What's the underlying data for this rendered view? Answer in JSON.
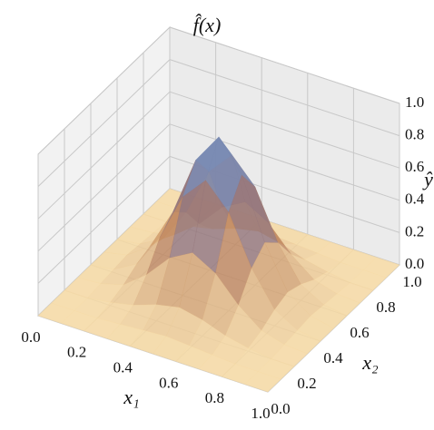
{
  "chart_data": {
    "type": "surface3d",
    "title": "f̂(x)",
    "x_label": "x₁",
    "y_label": "x₂",
    "z_label": "ŷ",
    "x": [
      0,
      0.1,
      0.2,
      0.3,
      0.4,
      0.5,
      0.6,
      0.7,
      0.8,
      0.9,
      1.0
    ],
    "y": [
      0,
      0.1,
      0.2,
      0.3,
      0.4,
      0.5,
      0.6,
      0.7,
      0.8,
      0.9,
      1.0
    ],
    "z": [
      [
        0,
        0,
        0,
        0,
        0,
        0,
        0,
        0,
        0,
        0,
        0
      ],
      [
        0,
        0,
        0,
        0.01,
        0.02,
        0.03,
        0.02,
        0.01,
        0,
        0,
        0
      ],
      [
        0,
        0,
        0.02,
        0.05,
        0.1,
        0.13,
        0.1,
        0.05,
        0.02,
        0,
        0
      ],
      [
        0,
        0.01,
        0.05,
        0.16,
        0.31,
        0.39,
        0.31,
        0.16,
        0.05,
        0.01,
        0
      ],
      [
        0,
        0.02,
        0.1,
        0.31,
        0.61,
        0.76,
        0.61,
        0.31,
        0.1,
        0.02,
        0
      ],
      [
        0,
        0.03,
        0.13,
        0.39,
        0.76,
        0.95,
        0.76,
        0.39,
        0.13,
        0.03,
        0
      ],
      [
        0,
        0.02,
        0.1,
        0.31,
        0.61,
        0.76,
        0.61,
        0.31,
        0.1,
        0.02,
        0
      ],
      [
        0,
        0.01,
        0.05,
        0.16,
        0.31,
        0.39,
        0.31,
        0.16,
        0.05,
        0.01,
        0
      ],
      [
        0,
        0,
        0.02,
        0.05,
        0.1,
        0.13,
        0.1,
        0.05,
        0.02,
        0,
        0
      ],
      [
        0,
        0,
        0,
        0.01,
        0.02,
        0.03,
        0.02,
        0.01,
        0,
        0,
        0
      ],
      [
        0,
        0,
        0,
        0,
        0,
        0,
        0,
        0,
        0,
        0,
        0
      ]
    ],
    "xlim": [
      0,
      1
    ],
    "ylim": [
      0,
      1
    ],
    "zlim": [
      0,
      1
    ],
    "xticks": [
      {
        "value": 0,
        "label": "0.0"
      },
      {
        "value": 0.2,
        "label": "0.2"
      },
      {
        "value": 0.4,
        "label": "0.4"
      },
      {
        "value": 0.6,
        "label": "0.6"
      },
      {
        "value": 0.8,
        "label": "0.8"
      },
      {
        "value": 1,
        "label": "1.0"
      }
    ],
    "yticks": [
      {
        "value": 0,
        "label": "0.0"
      },
      {
        "value": 0.2,
        "label": "0.2"
      },
      {
        "value": 0.4,
        "label": "0.4"
      },
      {
        "value": 0.6,
        "label": "0.6"
      },
      {
        "value": 0.8,
        "label": "0.8"
      },
      {
        "value": 1,
        "label": "1.0"
      }
    ],
    "zticks": [
      {
        "value": 0,
        "label": "0.0"
      },
      {
        "value": 0.2,
        "label": "0.2"
      },
      {
        "value": 0.4,
        "label": "0.4"
      },
      {
        "value": 0.6,
        "label": "0.6"
      },
      {
        "value": 0.8,
        "label": "0.8"
      },
      {
        "value": 1,
        "label": "1.0"
      }
    ],
    "colormap": [
      "#f9dca4",
      "#c48a5e",
      "#6f6693",
      "#8cd6f6"
    ],
    "grid": true
  }
}
